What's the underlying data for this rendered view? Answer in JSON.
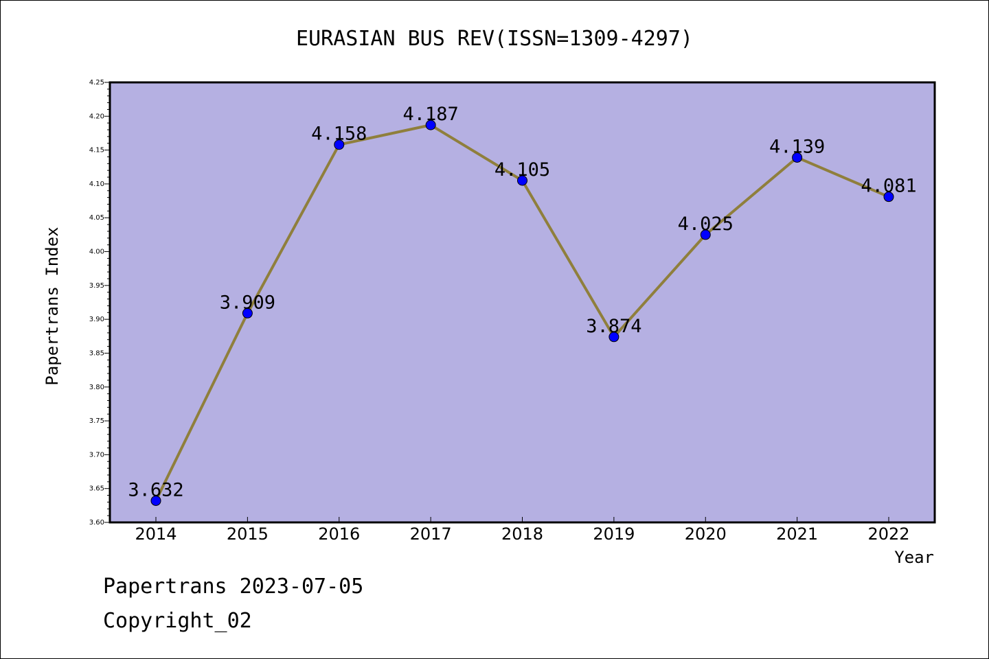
{
  "chart_data": {
    "type": "line",
    "title": "EURASIAN BUS REV(ISSN=1309-4297)",
    "xlabel": "Year",
    "ylabel": "Papertrans Index",
    "categories": [
      "2014",
      "2015",
      "2016",
      "2017",
      "2018",
      "2019",
      "2020",
      "2021",
      "2022"
    ],
    "series": [
      {
        "values": [
          3.632,
          3.909,
          4.158,
          4.187,
          4.105,
          3.874,
          4.025,
          4.139,
          4.081
        ],
        "data_labels": [
          "3.632",
          "3.909",
          "4.158",
          "4.187",
          "4.105",
          "3.874",
          "4.025",
          "4.139",
          "4.081"
        ]
      }
    ],
    "ylim": [
      3.6,
      4.25
    ],
    "yticks": [
      "3.60",
      "3.65",
      "3.70",
      "3.75",
      "3.80",
      "3.85",
      "3.90",
      "3.95",
      "4.00",
      "4.05",
      "4.10",
      "4.15",
      "4.20",
      "4.25"
    ],
    "grid": false,
    "colors": {
      "plot_background": "#b5b0e2",
      "line": "#8f7f3c",
      "marker": "#0000ff"
    }
  },
  "footer": {
    "line1": "Papertrans 2023-07-05",
    "line2": "Copyright_02"
  }
}
